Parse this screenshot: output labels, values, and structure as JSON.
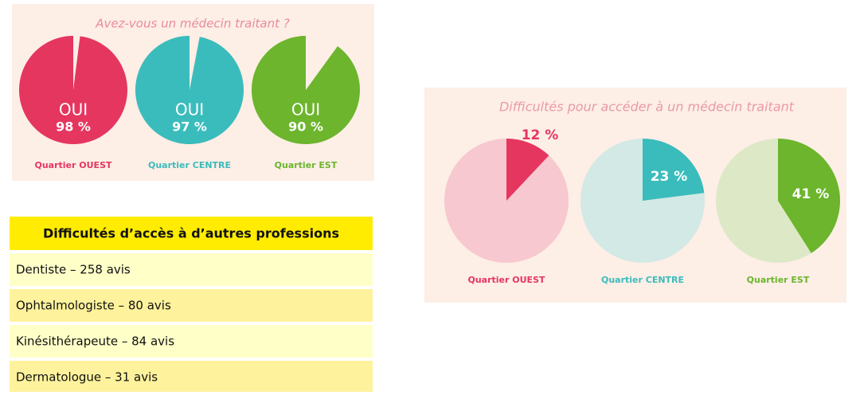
{
  "chart_data": [
    {
      "type": "pie",
      "title": "Avez-vous un médecin traitant ?",
      "answer": "OUI",
      "categories": [
        "Quartier OUEST",
        "Quartier CENTRE",
        "Quartier EST"
      ],
      "values": [
        98,
        97,
        90
      ],
      "value_labels": [
        "98 %",
        "97 %",
        "90 %"
      ],
      "colors": [
        "#e5365f",
        "#3bbcbc",
        "#6cb52d"
      ]
    },
    {
      "type": "pie",
      "title": "Difficultés pour accéder à un médecin traitant",
      "categories": [
        "Quartier OUEST",
        "Quartier CENTRE",
        "Quartier EST"
      ],
      "values": [
        12,
        23,
        41
      ],
      "value_labels": [
        "12 %",
        "23 %",
        "41 %"
      ],
      "colors": [
        "#e5365f",
        "#3bbcbc",
        "#6cb52d"
      ],
      "light_colors": [
        "#f7c8cf",
        "#d2e9e6",
        "#dde9c6"
      ]
    }
  ],
  "table": {
    "header": "Difficultés d’accès à d’autres professions",
    "rows": [
      "Dentiste – 258 avis",
      "Ophtalmologiste – 80 avis",
      "Kinésithérapeute – 84 avis",
      "Dermatologue – 31 avis"
    ]
  }
}
